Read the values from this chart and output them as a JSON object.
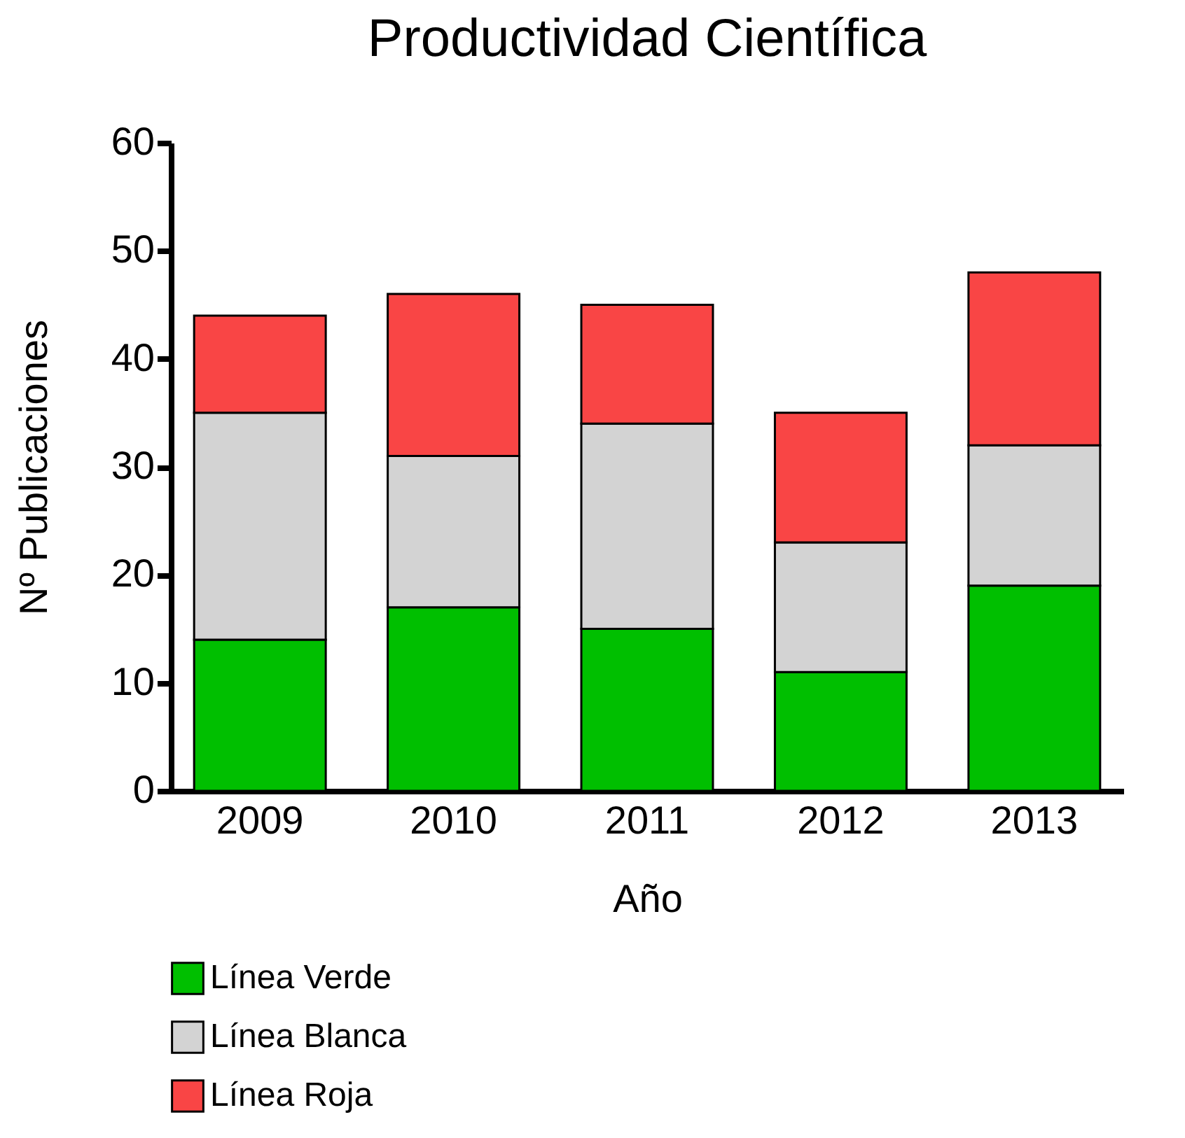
{
  "chart_data": {
    "type": "bar",
    "title": "Productividad Científica",
    "xlabel": "Año",
    "ylabel": "Nº Publicaciones",
    "categories": [
      "2009",
      "2010",
      "2011",
      "2012",
      "2013"
    ],
    "series": [
      {
        "name": "Línea Verde",
        "color": "#00bf00",
        "values": [
          14,
          17,
          15,
          11,
          19
        ]
      },
      {
        "name": "Línea Blanca",
        "color": "#d3d3d3",
        "values": [
          21,
          14,
          19,
          12,
          13
        ]
      },
      {
        "name": "Línea Roja",
        "color": "#f94545",
        "values": [
          9,
          15,
          11,
          12,
          16
        ]
      }
    ],
    "stacked": true,
    "ylim": [
      0,
      60
    ],
    "yticks": [
      0,
      10,
      20,
      30,
      40,
      50,
      60
    ],
    "grid": false,
    "legend": "bottom"
  }
}
